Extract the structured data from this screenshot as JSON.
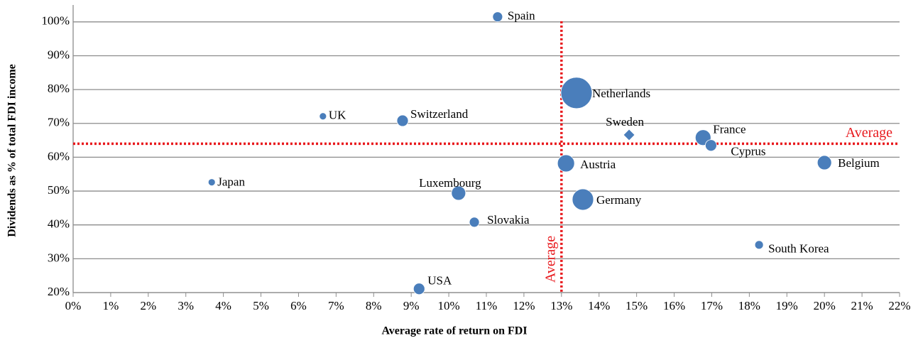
{
  "chart_data": {
    "type": "bubble",
    "x_label": "Average rate of return on FDI",
    "y_label": "Dividends as % of total FDI income",
    "point_labels": [
      "Spain",
      "Netherlands",
      "UK",
      "Switzerland",
      "Sweden",
      "France",
      "Cyprus",
      "Austria",
      "Belgium",
      "Japan",
      "Luxembourg",
      "Germany",
      "Slovakia",
      "South Korea",
      "USA"
    ],
    "x": [
      11.3,
      13.4,
      6.65,
      8.77,
      14.8,
      16.77,
      16.98,
      13.12,
      20.0,
      3.69,
      10.26,
      13.57,
      10.68,
      18.26,
      9.21
    ],
    "values": [
      101.5,
      79.0,
      72.1,
      70.8,
      66.6,
      65.8,
      63.5,
      58.2,
      58.4,
      52.6,
      49.4,
      47.5,
      40.8,
      34.1,
      21.1
    ],
    "sizes": [
      49,
      484,
      25,
      64,
      64,
      121,
      64,
      144,
      100,
      25,
      100,
      225,
      49,
      36,
      64
    ],
    "markers": [
      "circle",
      "circle",
      "circle",
      "circle",
      "diamond",
      "circle",
      "circle",
      "circle",
      "circle",
      "circle",
      "circle",
      "circle",
      "circle",
      "circle",
      "circle"
    ],
    "color": "#4a7ebb",
    "reference_lines": [
      {
        "axis": "x",
        "value": 13,
        "label": "Average"
      },
      {
        "axis": "y",
        "value": 64,
        "label": "Average"
      }
    ],
    "reference_color": "#e8191d",
    "xlim": [
      0,
      22
    ],
    "xticks": [
      {
        "value": 0,
        "label": "0%"
      },
      {
        "value": 1,
        "label": "1%"
      },
      {
        "value": 2,
        "label": "2%"
      },
      {
        "value": 3,
        "label": "3%"
      },
      {
        "value": 4,
        "label": "4%"
      },
      {
        "value": 5,
        "label": "5%"
      },
      {
        "value": 6,
        "label": "6%"
      },
      {
        "value": 7,
        "label": "7%"
      },
      {
        "value": 8,
        "label": "8%"
      },
      {
        "value": 9,
        "label": "9%"
      },
      {
        "value": 10,
        "label": "10%"
      },
      {
        "value": 11,
        "label": "11%"
      },
      {
        "value": 12,
        "label": "12%"
      },
      {
        "value": 13,
        "label": "13%"
      },
      {
        "value": 14,
        "label": "14%"
      },
      {
        "value": 15,
        "label": "15%"
      },
      {
        "value": 16,
        "label": "16%"
      },
      {
        "value": 17,
        "label": "17%"
      },
      {
        "value": 18,
        "label": "18%"
      },
      {
        "value": 19,
        "label": "19%"
      },
      {
        "value": 20,
        "label": "20%"
      },
      {
        "value": 21,
        "label": "21%"
      },
      {
        "value": 22,
        "label": "22%"
      }
    ],
    "ylim": [
      20,
      105
    ],
    "yticks": [
      {
        "value": 20,
        "label": "20%"
      },
      {
        "value": 30,
        "label": "30%"
      },
      {
        "value": 40,
        "label": "40%"
      },
      {
        "value": 50,
        "label": "50%"
      },
      {
        "value": 60,
        "label": "60%"
      },
      {
        "value": 70,
        "label": "70%"
      },
      {
        "value": 80,
        "label": "80%"
      },
      {
        "value": 90,
        "label": "90%"
      },
      {
        "value": 100,
        "label": "100%"
      }
    ],
    "grid": true
  }
}
